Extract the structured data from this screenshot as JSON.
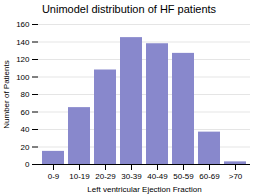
{
  "chart_data": {
    "type": "bar",
    "title": "Unimodel distribution of HF patients",
    "xlabel": "Left ventricular Ejection Fraction",
    "ylabel": "Number of Patients",
    "categories": [
      "0-9",
      "10-19",
      "20-29",
      "30-39",
      "40-49",
      "50-59",
      "60-69",
      ">70"
    ],
    "values": [
      15,
      65,
      108,
      145,
      138,
      127,
      37,
      3
    ],
    "color": "#8888cc",
    "ylim": [
      0,
      160
    ],
    "yticks": [
      0,
      20,
      40,
      60,
      80,
      100,
      120,
      140,
      160
    ],
    "grid": true
  }
}
